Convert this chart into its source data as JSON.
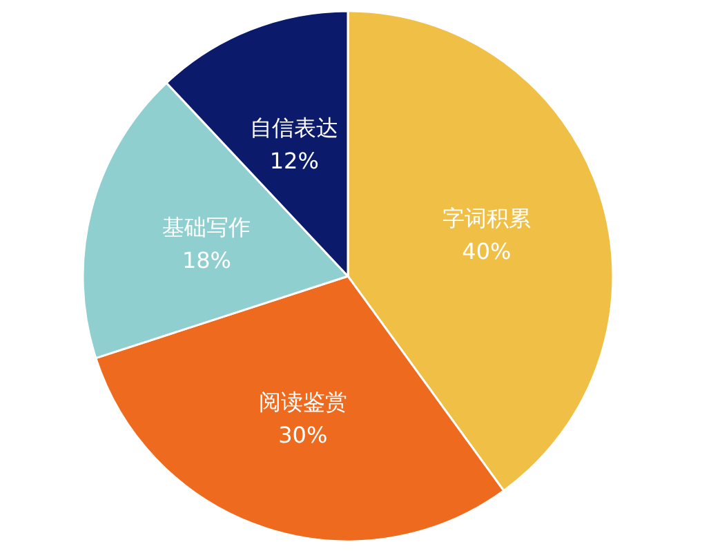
{
  "chart_data": {
    "type": "pie",
    "categories": [
      "字词积累",
      "阅读鉴赏",
      "基础写作",
      "自信表达"
    ],
    "values": [
      40,
      30,
      18,
      12
    ],
    "colors": [
      "#f0bf45",
      "#ee6a1f",
      "#8fcfcf",
      "#0b1a6b"
    ],
    "value_labels": [
      "40%",
      "30%",
      "18%",
      "12%"
    ],
    "legend": false
  }
}
